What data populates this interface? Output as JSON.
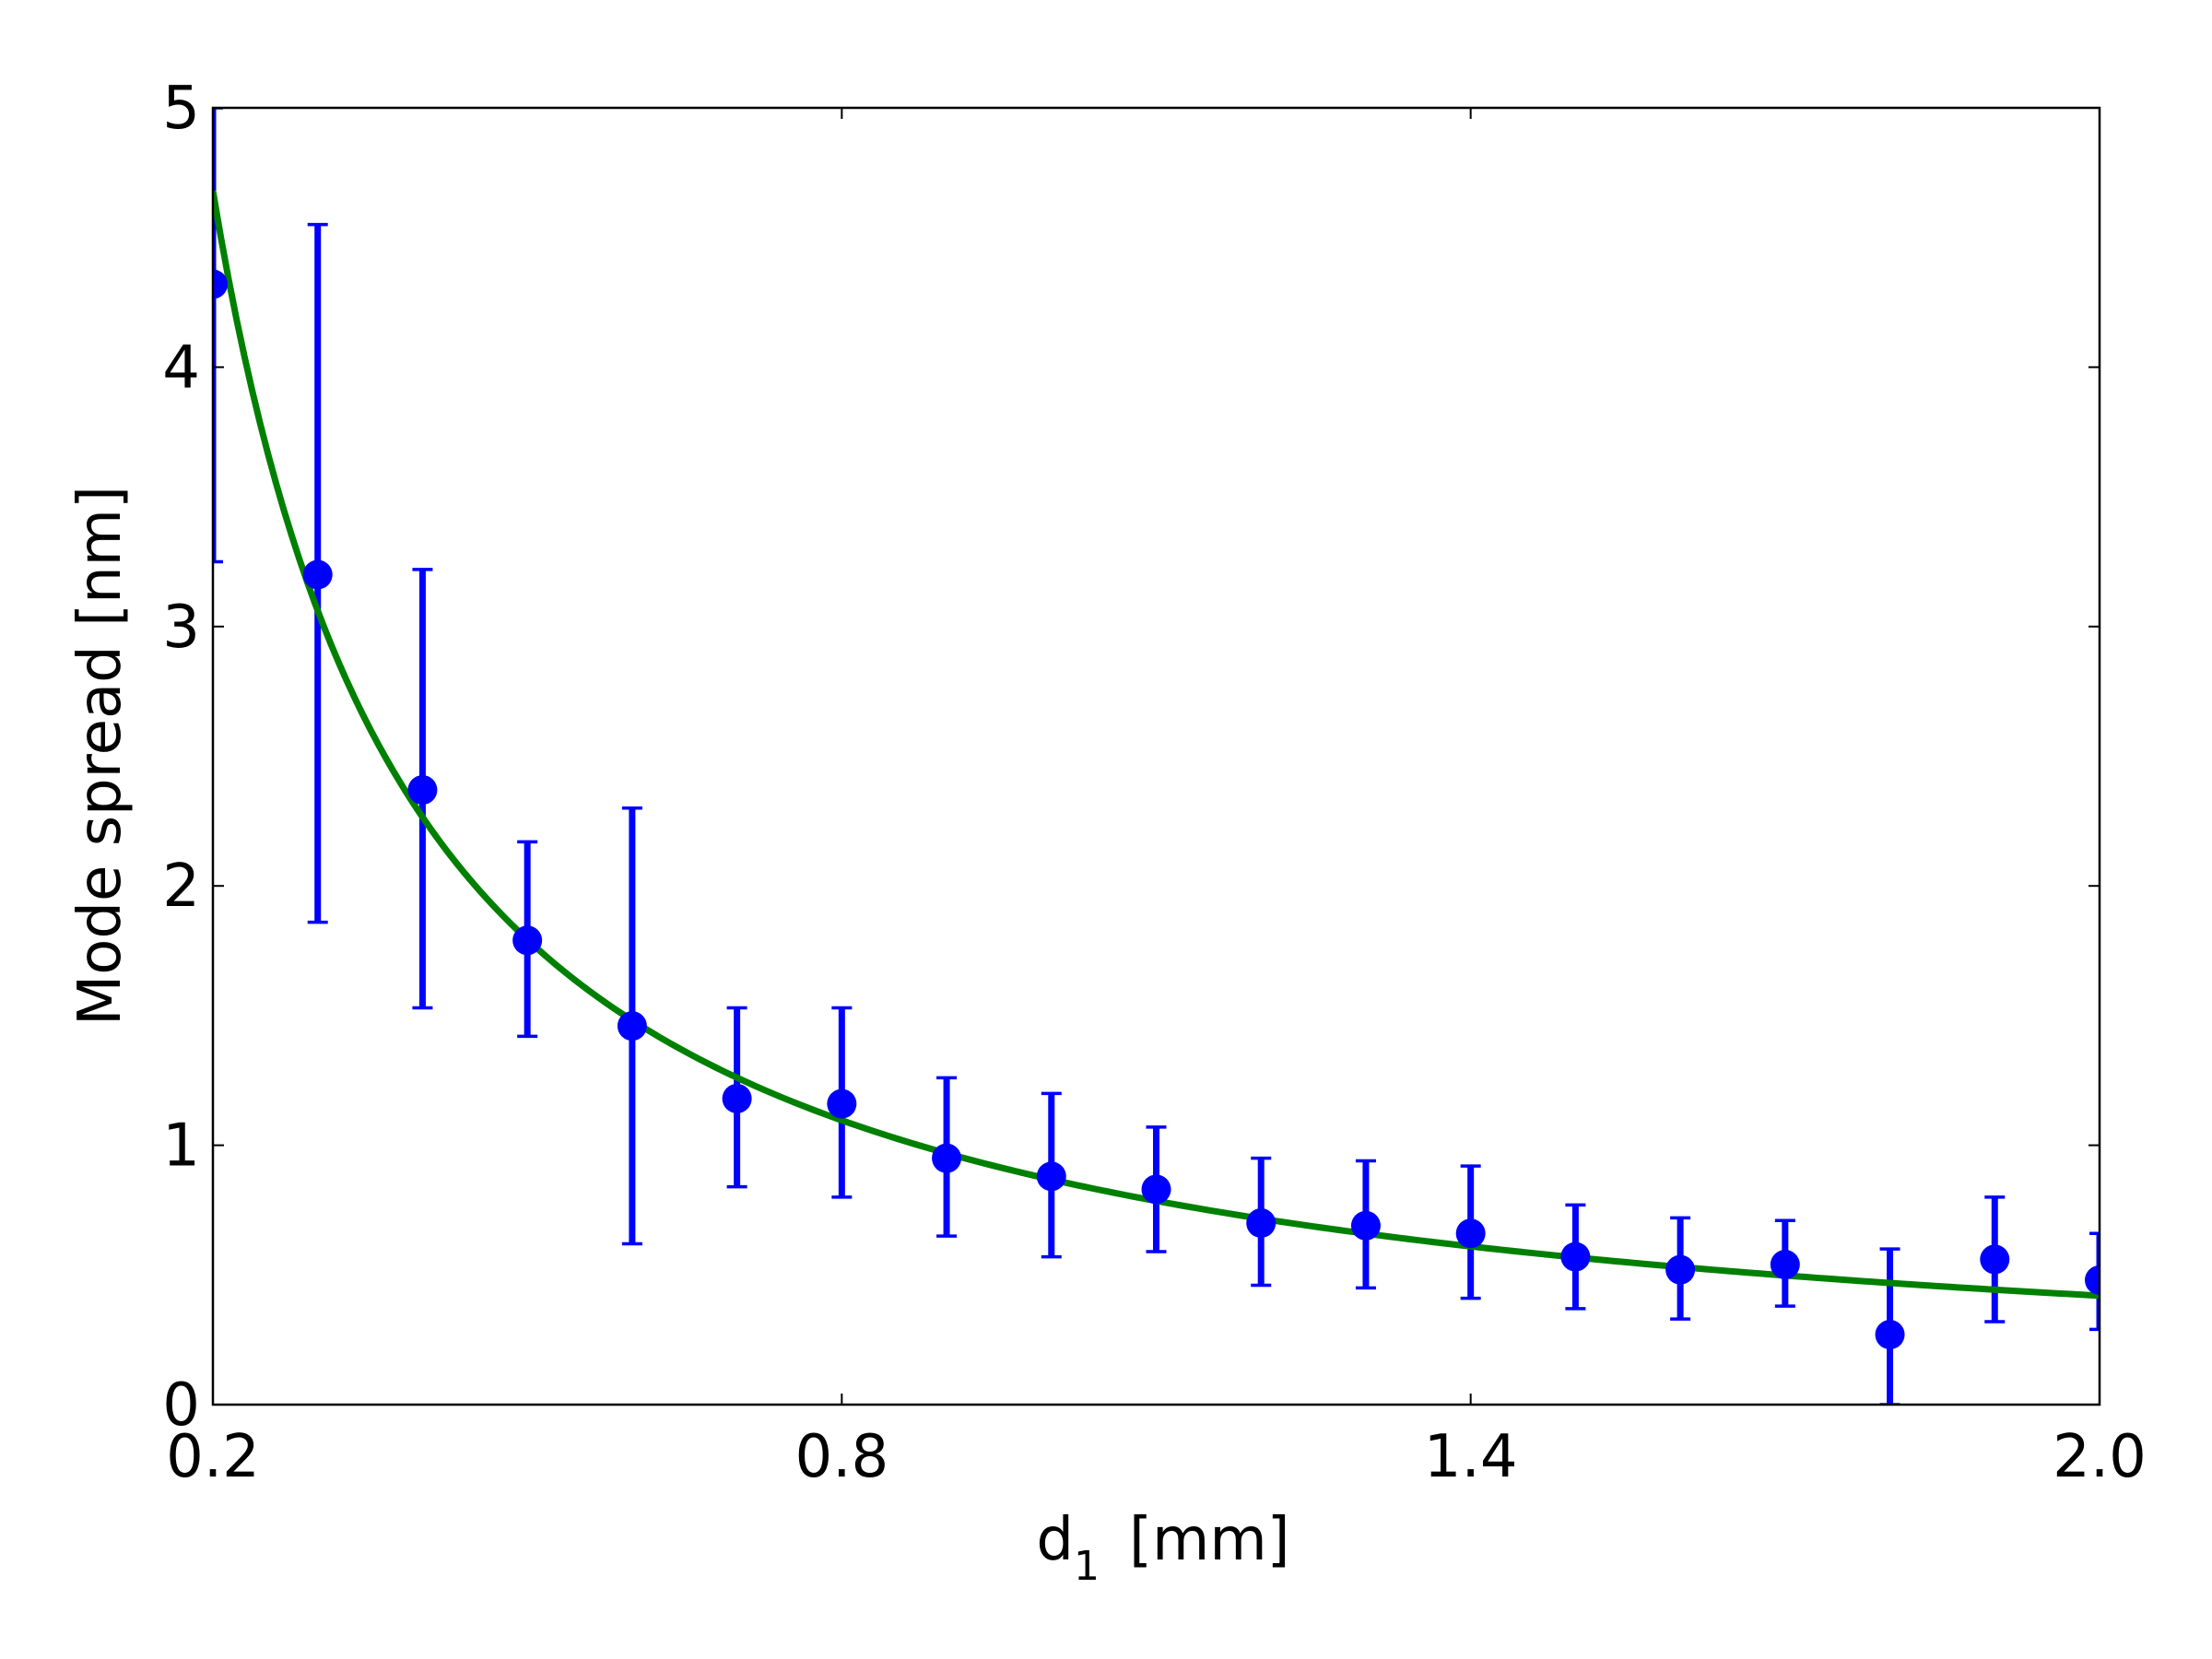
{
  "chart_data": {
    "type": "scatter",
    "title": "",
    "xlabel": "d",
    "xlabel_subscript": "1",
    "xlabel_unit": "[mm]",
    "ylabel": "Mode spread [nm]",
    "xlim": [
      0.2,
      2.0
    ],
    "ylim": [
      0,
      5
    ],
    "xticks": [
      0.2,
      0.8,
      1.4,
      2.0
    ],
    "xtick_labels": [
      "0.2",
      "0.8",
      "1.4",
      "2.0"
    ],
    "yticks": [
      0,
      1,
      2,
      3,
      4,
      5
    ],
    "ytick_labels": [
      "0",
      "1",
      "2",
      "3",
      "4",
      "5"
    ],
    "grid": false,
    "colors": {
      "points": "#0000ff",
      "fit": "#008000",
      "axes": "#000000"
    },
    "series": [
      {
        "kind": "errorbar",
        "x": [
          0.2,
          0.3,
          0.4,
          0.5,
          0.6,
          0.7,
          0.8,
          0.9,
          1.0,
          1.1,
          1.2,
          1.3,
          1.4,
          1.5,
          1.6,
          1.7,
          1.8,
          1.9,
          2.0
        ],
        "y": [
          4.32,
          3.2,
          2.37,
          1.79,
          1.46,
          1.18,
          1.16,
          0.95,
          0.88,
          0.83,
          0.7,
          0.69,
          0.66,
          0.57,
          0.52,
          0.54,
          0.27,
          0.56,
          0.48
        ],
        "err_low": [
          3.25,
          1.86,
          1.53,
          1.42,
          0.62,
          0.84,
          0.8,
          0.65,
          0.57,
          0.59,
          0.46,
          0.45,
          0.41,
          0.37,
          0.33,
          0.38,
          0.0,
          0.32,
          0.29
        ],
        "err_high": [
          5.0,
          4.55,
          3.22,
          2.17,
          2.3,
          1.53,
          1.53,
          1.26,
          1.2,
          1.07,
          0.95,
          0.94,
          0.92,
          0.77,
          0.72,
          0.71,
          0.6,
          0.8,
          0.66
        ]
      },
      {
        "kind": "line",
        "model": "a/x^b",
        "x": [
          0.2,
          0.25,
          0.3,
          0.35,
          0.4,
          0.5,
          0.6,
          0.7,
          0.8,
          1.0,
          1.2,
          1.4,
          1.6,
          1.8,
          2.0
        ],
        "y": [
          4.68,
          3.72,
          3.08,
          2.63,
          2.29,
          1.82,
          1.51,
          1.29,
          1.12,
          0.89,
          0.74,
          0.63,
          0.55,
          0.49,
          0.42
        ]
      }
    ]
  }
}
